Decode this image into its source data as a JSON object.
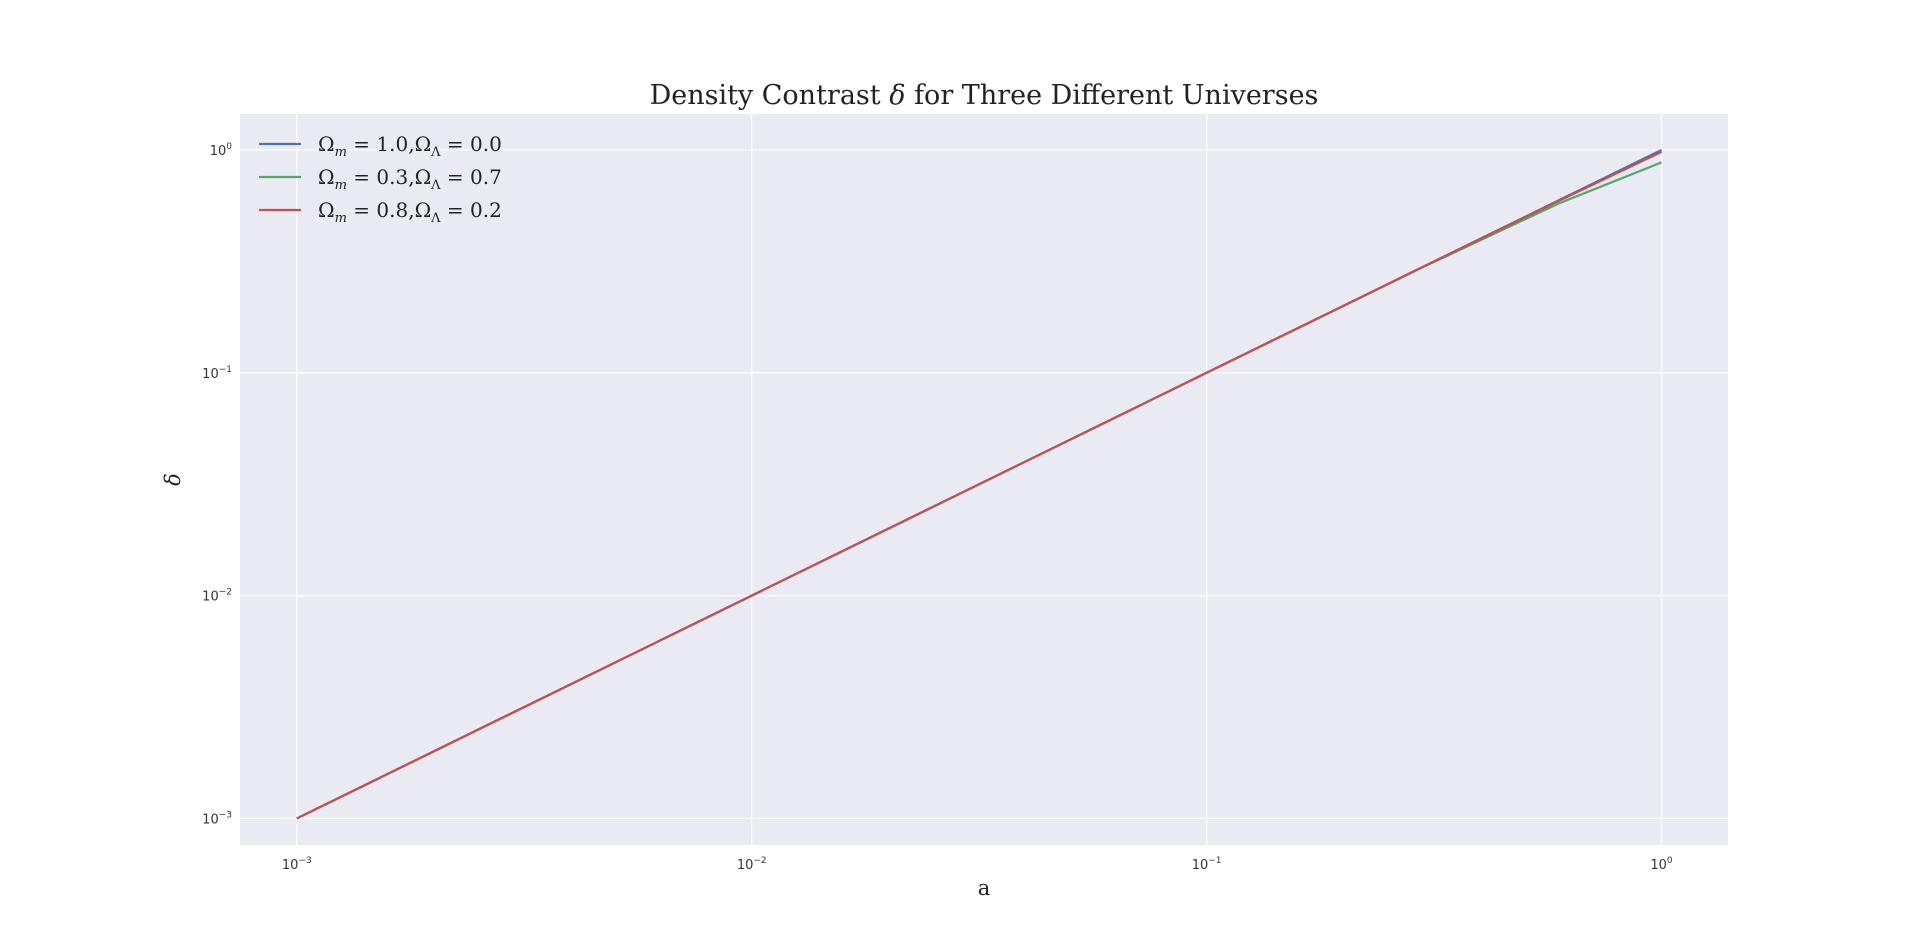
{
  "chart_data": {
    "type": "line",
    "title_parts": [
      "Density Contrast ",
      "δ",
      " for Three Different Universes"
    ],
    "xlabel": "a",
    "ylabel": "δ",
    "xscale": "log",
    "yscale": "log",
    "xlim": [
      0.00075,
      1.4
    ],
    "ylim": [
      0.00076,
      1.45
    ],
    "grid": true,
    "legend_position": "top-left",
    "x_ticks": [
      {
        "value": 0.001,
        "base": "10",
        "exp": "−3"
      },
      {
        "value": 0.01,
        "base": "10",
        "exp": "−2"
      },
      {
        "value": 0.1,
        "base": "10",
        "exp": "−1"
      },
      {
        "value": 1,
        "base": "10",
        "exp": "0"
      }
    ],
    "y_ticks": [
      {
        "value": 0.001,
        "base": "10",
        "exp": "−3"
      },
      {
        "value": 0.01,
        "base": "10",
        "exp": "−2"
      },
      {
        "value": 0.1,
        "base": "10",
        "exp": "−1"
      },
      {
        "value": 1,
        "base": "10",
        "exp": "0"
      }
    ],
    "series": [
      {
        "name": "Ωm = 1.0, ΩΛ = 0.0",
        "legend": {
          "omega": "Ω",
          "m_sub": "m",
          "m_val": " = 1.0,",
          "l_sub": "Λ",
          "l_val": " = 0.0"
        },
        "color": "#4c72b0",
        "x": [
          0.001,
          0.01,
          0.1,
          0.3,
          0.6,
          1.0
        ],
        "y": [
          0.001,
          0.01,
          0.1,
          0.3,
          0.6,
          1.0
        ]
      },
      {
        "name": "Ωm = 0.3, ΩΛ = 0.7",
        "legend": {
          "omega": "Ω",
          "m_sub": "m",
          "m_val": " = 0.3,",
          "l_sub": "Λ",
          "l_val": " = 0.7"
        },
        "color": "#55a868",
        "x": [
          0.001,
          0.01,
          0.1,
          0.3,
          0.6,
          1.0
        ],
        "y": [
          0.001,
          0.01,
          0.1,
          0.299,
          0.58,
          0.88
        ]
      },
      {
        "name": "Ωm = 0.8, ΩΛ = 0.2",
        "legend": {
          "omega": "Ω",
          "m_sub": "m",
          "m_val": " = 0.8,",
          "l_sub": "Λ",
          "l_val": " = 0.2"
        },
        "color": "#c44e52",
        "x": [
          0.001,
          0.01,
          0.1,
          0.3,
          0.6,
          1.0
        ],
        "y": [
          0.001,
          0.01,
          0.1,
          0.3,
          0.596,
          0.98
        ]
      }
    ]
  },
  "colors": {
    "plot_background": "#eaeaf2",
    "grid": "#ffffff"
  }
}
